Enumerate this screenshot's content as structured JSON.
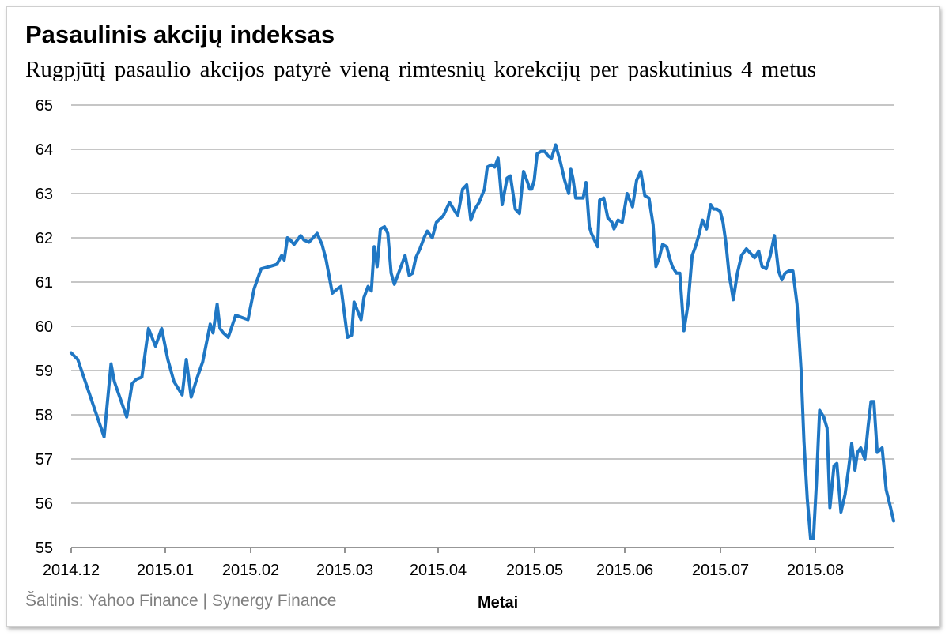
{
  "chart_data": {
    "type": "line",
    "title": "Pasaulinis akcijų indeksas",
    "subtitle": "Rugpjūtį pasaulio akcijos patyrė vieną rimtesnių korekcijų per paskutinius 4 metus",
    "xlabel": "Metai",
    "ylabel": "",
    "ylim": [
      55,
      65
    ],
    "yticks": [
      "55",
      "56",
      "57",
      "58",
      "59",
      "60",
      "61",
      "62",
      "63",
      "64",
      "65"
    ],
    "xticks": [
      "2014.12",
      "2015.01",
      "2015.02",
      "2015.03",
      "2015.04",
      "2015.05",
      "2015.06",
      "2015.07",
      "2015.08"
    ],
    "grid": true,
    "legend": "none",
    "source": "Šaltinis: Yahoo Finance | Synergy Finance",
    "series": [
      {
        "color": "#1f77c4",
        "x": [
          0.0,
          0.16,
          0.8,
          0.97,
          1.05,
          1.18,
          1.35,
          1.48,
          1.58,
          1.72,
          1.88,
          2.05,
          2.2,
          2.35,
          2.5,
          2.7,
          2.8,
          2.92,
          3.05,
          3.2,
          3.38,
          3.45,
          3.55,
          3.62,
          3.7,
          3.82,
          4.0,
          4.3,
          4.45,
          4.62,
          4.82,
          5.0,
          5.12,
          5.18,
          5.26,
          5.33,
          5.42,
          5.58,
          5.66,
          5.78,
          5.98,
          6.1,
          6.2,
          6.35,
          6.48,
          6.56,
          6.72,
          6.82,
          6.88,
          7.05,
          7.12,
          7.22,
          7.3,
          7.37,
          7.44,
          7.52,
          7.62,
          7.7,
          7.78,
          7.86,
          7.94,
          8.02,
          8.12,
          8.22,
          8.3,
          8.38,
          8.48,
          8.58,
          8.66,
          8.78,
          8.88,
          9.05,
          9.2,
          9.3,
          9.4,
          9.52,
          9.62,
          9.72,
          9.82,
          9.92,
          10.05,
          10.12,
          10.22,
          10.3,
          10.38,
          10.48,
          10.6,
          10.68,
          10.8,
          10.9,
          11.0,
          11.1,
          11.15,
          11.2,
          11.26,
          11.33,
          11.42,
          11.52,
          11.6,
          11.68,
          11.78,
          11.9,
          12.0,
          12.1,
          12.15,
          12.2,
          12.27,
          12.35,
          12.45,
          12.52,
          12.6,
          12.65,
          12.7,
          12.8,
          12.85,
          12.95,
          13.05,
          13.15,
          13.2,
          13.3,
          13.4,
          13.52,
          13.65,
          13.75,
          13.85,
          13.95,
          14.05,
          14.15,
          14.22,
          14.3,
          14.38,
          14.48,
          14.55,
          14.62,
          14.72,
          14.8,
          14.9,
          15.0,
          15.1,
          15.18,
          15.26,
          15.35,
          15.45,
          15.55,
          15.62,
          15.7,
          15.78,
          15.85,
          15.92,
          16.0,
          16.05,
          16.1,
          16.2,
          16.3,
          16.42,
          16.52,
          16.62,
          16.72,
          16.8,
          16.9,
          17.0,
          17.1,
          17.2,
          17.28,
          17.36,
          17.45,
          17.55,
          17.65,
          17.75,
          17.82,
          17.9,
          17.98,
          18.05,
          18.12,
          18.2,
          18.3,
          18.38,
          18.45,
          18.55,
          18.62,
          18.72,
          18.82,
          18.9,
          18.98,
          19.06,
          19.12,
          19.2,
          19.3,
          19.38,
          19.45,
          19.52,
          19.6,
          19.72,
          19.82,
          19.9,
          20.0
        ],
        "y": [
          59.4,
          59.25,
          57.5,
          59.15,
          58.75,
          58.4,
          57.95,
          58.7,
          58.8,
          58.85,
          59.95,
          59.55,
          59.95,
          59.25,
          58.75,
          58.45,
          59.25,
          58.4,
          58.8,
          59.2,
          60.05,
          59.85,
          60.5,
          59.95,
          59.85,
          59.75,
          60.25,
          60.15,
          60.85,
          61.3,
          61.35,
          61.4,
          61.6,
          61.5,
          62.0,
          61.95,
          61.85,
          62.05,
          61.95,
          61.9,
          62.1,
          61.85,
          61.5,
          60.75,
          60.85,
          60.9,
          59.75,
          59.8,
          60.55,
          60.15,
          60.65,
          60.9,
          60.8,
          61.8,
          61.35,
          62.2,
          62.25,
          62.1,
          61.2,
          60.95,
          61.15,
          61.35,
          61.6,
          61.15,
          61.2,
          61.55,
          61.75,
          62.0,
          62.15,
          62.0,
          62.35,
          62.5,
          62.8,
          62.65,
          62.5,
          63.1,
          63.2,
          62.4,
          62.65,
          62.8,
          63.1,
          63.6,
          63.65,
          63.6,
          63.8,
          62.75,
          63.35,
          63.4,
          62.65,
          62.55,
          63.5,
          63.25,
          63.1,
          63.1,
          63.3,
          63.9,
          63.95,
          63.95,
          63.85,
          63.8,
          64.1,
          63.7,
          63.3,
          63.0,
          63.55,
          63.35,
          62.9,
          62.9,
          62.9,
          63.25,
          62.25,
          62.1,
          62.0,
          61.8,
          62.85,
          62.9,
          62.45,
          62.35,
          62.2,
          62.4,
          62.35,
          63.0,
          62.7,
          63.3,
          63.5,
          62.95,
          62.9,
          62.3,
          61.35,
          61.55,
          61.85,
          61.8,
          61.55,
          61.35,
          61.2,
          61.2,
          59.9,
          60.5,
          61.6,
          61.8,
          62.05,
          62.4,
          62.2,
          62.75,
          62.65,
          62.65,
          62.6,
          62.35,
          61.9,
          61.15,
          60.9,
          60.6,
          61.2,
          61.6,
          61.75,
          61.65,
          61.55,
          61.7,
          61.35,
          61.3,
          61.6,
          62.05,
          61.25,
          61.05,
          61.2,
          61.25,
          61.25,
          60.5,
          59.0,
          57.4,
          56.1,
          55.2,
          55.2,
          56.4,
          58.1,
          57.95,
          57.7,
          55.9,
          56.85,
          56.9,
          55.8,
          56.2,
          56.75,
          57.35,
          56.75,
          57.15,
          57.25,
          57.0,
          57.75,
          58.3,
          58.3,
          57.15,
          57.25,
          56.3,
          56.0,
          55.6
        ]
      }
    ]
  }
}
